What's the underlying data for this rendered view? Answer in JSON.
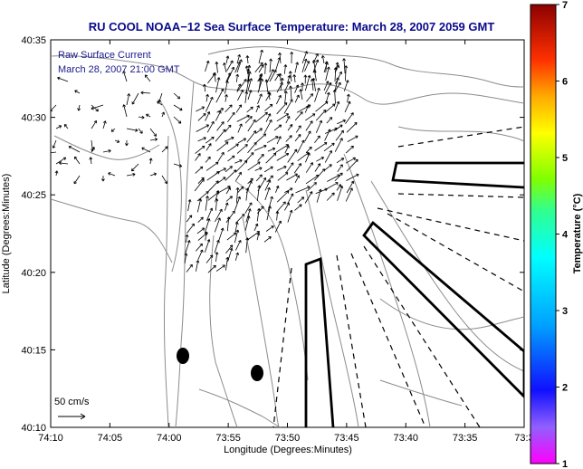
{
  "title": "RU COOL  NOAA−12  Sea Surface Temperature:  March 28, 2007 2059 GMT",
  "legend": {
    "line1": "Raw Surface Current",
    "line2": "March 28, 2007 21:00 GMT"
  },
  "scale_label": "50 cm/s",
  "xlabel": "Longitude (Degrees:Minutes)",
  "ylabel": "Latitude (Degrees:Minutes)",
  "x_ticks": [
    "74:10",
    "74:05",
    "74:00",
    "73:55",
    "73:50",
    "73:45",
    "73:40",
    "73:35",
    "73:3"
  ],
  "y_ticks": [
    "40:35",
    "40:30",
    "40:25",
    "40:20",
    "40:15",
    "40:10"
  ],
  "colorbar": {
    "label": "Temperature (°C)",
    "ticks": [
      "7",
      "6",
      "5",
      "4",
      "3",
      "2",
      "1"
    ],
    "range": [
      1,
      7
    ]
  },
  "colors": {
    "title": "#0a0a8c",
    "legend_text": "#1a1a8c",
    "contour": "#8c8c8c",
    "vectors": "#000000"
  }
}
